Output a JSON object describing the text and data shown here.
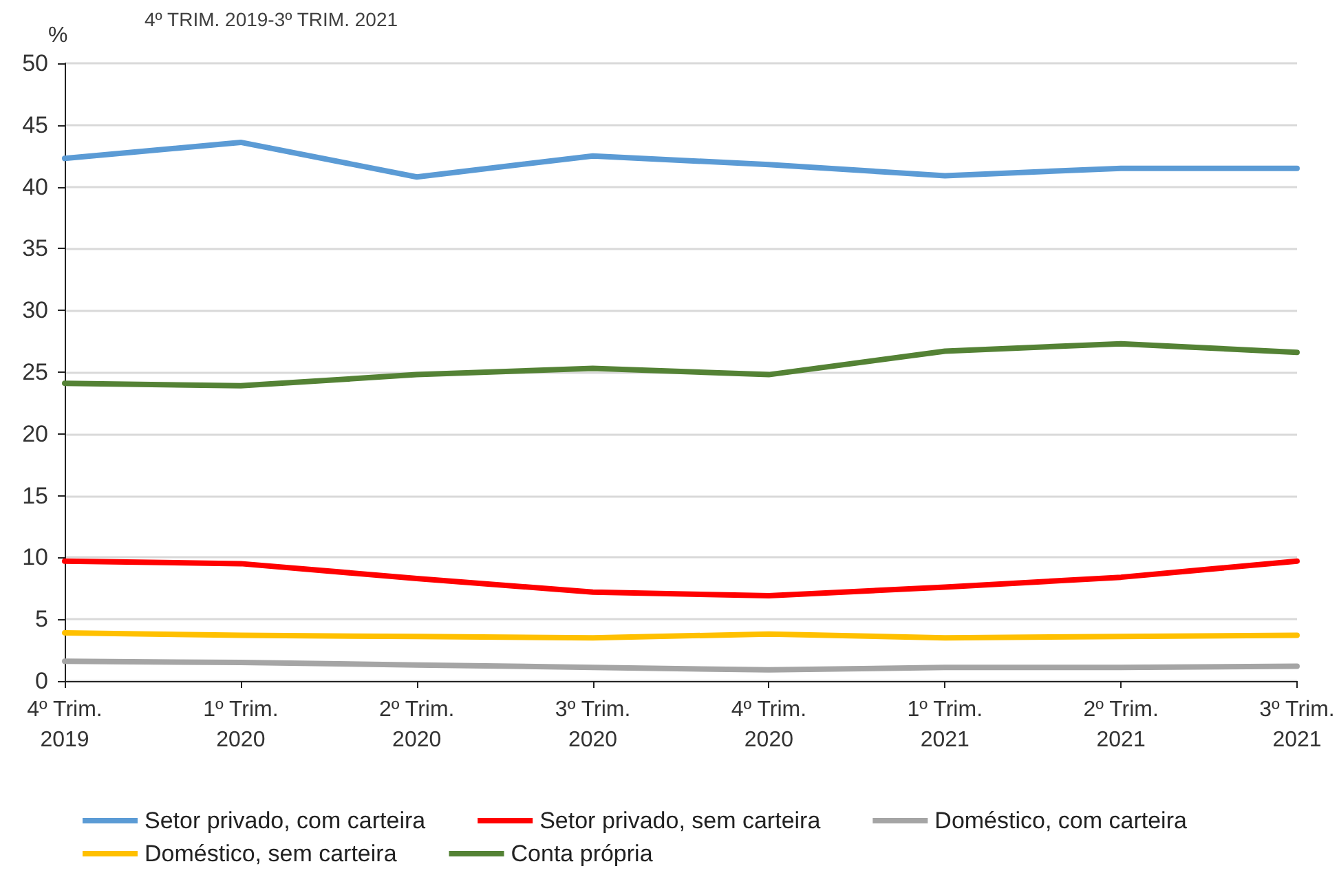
{
  "chart_data": {
    "type": "line",
    "subtitle": "4º TRIM. 2019-3º TRIM. 2021",
    "ylabel": "%",
    "categories": [
      "4º Trim.\n2019",
      "1º Trim.\n2020",
      "2º Trim.\n2020",
      "3º Trim.\n2020",
      "4º Trim.\n2020",
      "1º Trim.\n2021",
      "2º Trim.\n2021",
      "3º Trim.\n2021"
    ],
    "series": [
      {
        "name": "Setor privado, com carteira",
        "color": "#5b9bd5",
        "values": [
          42.3,
          43.6,
          40.8,
          42.5,
          41.8,
          40.9,
          41.5,
          41.5
        ]
      },
      {
        "name": "Setor privado, sem carteira",
        "color": "#ff0000",
        "values": [
          9.7,
          9.5,
          8.3,
          7.2,
          6.9,
          7.6,
          8.4,
          9.7
        ]
      },
      {
        "name": "Doméstico, com carteira",
        "color": "#a5a5a5",
        "values": [
          1.6,
          1.5,
          1.3,
          1.1,
          0.9,
          1.1,
          1.1,
          1.2
        ]
      },
      {
        "name": "Doméstico, sem carteira",
        "color": "#ffc000",
        "values": [
          3.9,
          3.7,
          3.6,
          3.5,
          3.8,
          3.5,
          3.6,
          3.7
        ]
      },
      {
        "name": "Conta própria",
        "color": "#548235",
        "values": [
          24.1,
          23.9,
          24.8,
          25.3,
          24.8,
          26.7,
          27.3,
          26.6
        ]
      }
    ],
    "ylim": [
      0,
      50
    ],
    "yticks": [
      0,
      5,
      10,
      15,
      20,
      25,
      30,
      35,
      40,
      45,
      50
    ],
    "grid": "y",
    "legend": "bottom",
    "marker": "none",
    "line_style": "solid"
  }
}
